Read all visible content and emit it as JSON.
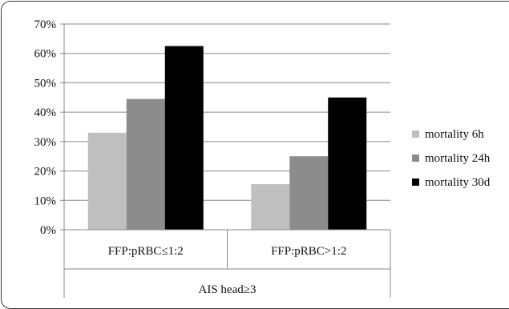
{
  "chart_data": {
    "type": "bar",
    "categories": [
      "FFP:pRBC≤1:2",
      "FFP:pRBC>1:2"
    ],
    "group_label": "AIS head≥3",
    "series": [
      {
        "name": "mortality 6h",
        "values": [
          33,
          15.5
        ],
        "color": "#bfbfbf"
      },
      {
        "name": "mortality 24h",
        "values": [
          44.5,
          25
        ],
        "color": "#8c8c8c"
      },
      {
        "name": "mortality 30d",
        "values": [
          62.5,
          45
        ],
        "color": "#000000"
      }
    ],
    "y_ticks": [
      "0%",
      "10%",
      "20%",
      "30%",
      "40%",
      "50%",
      "60%",
      "70%"
    ],
    "ylim": [
      0,
      70
    ],
    "y_unit": "%",
    "grid": true,
    "legend_position": "right"
  }
}
